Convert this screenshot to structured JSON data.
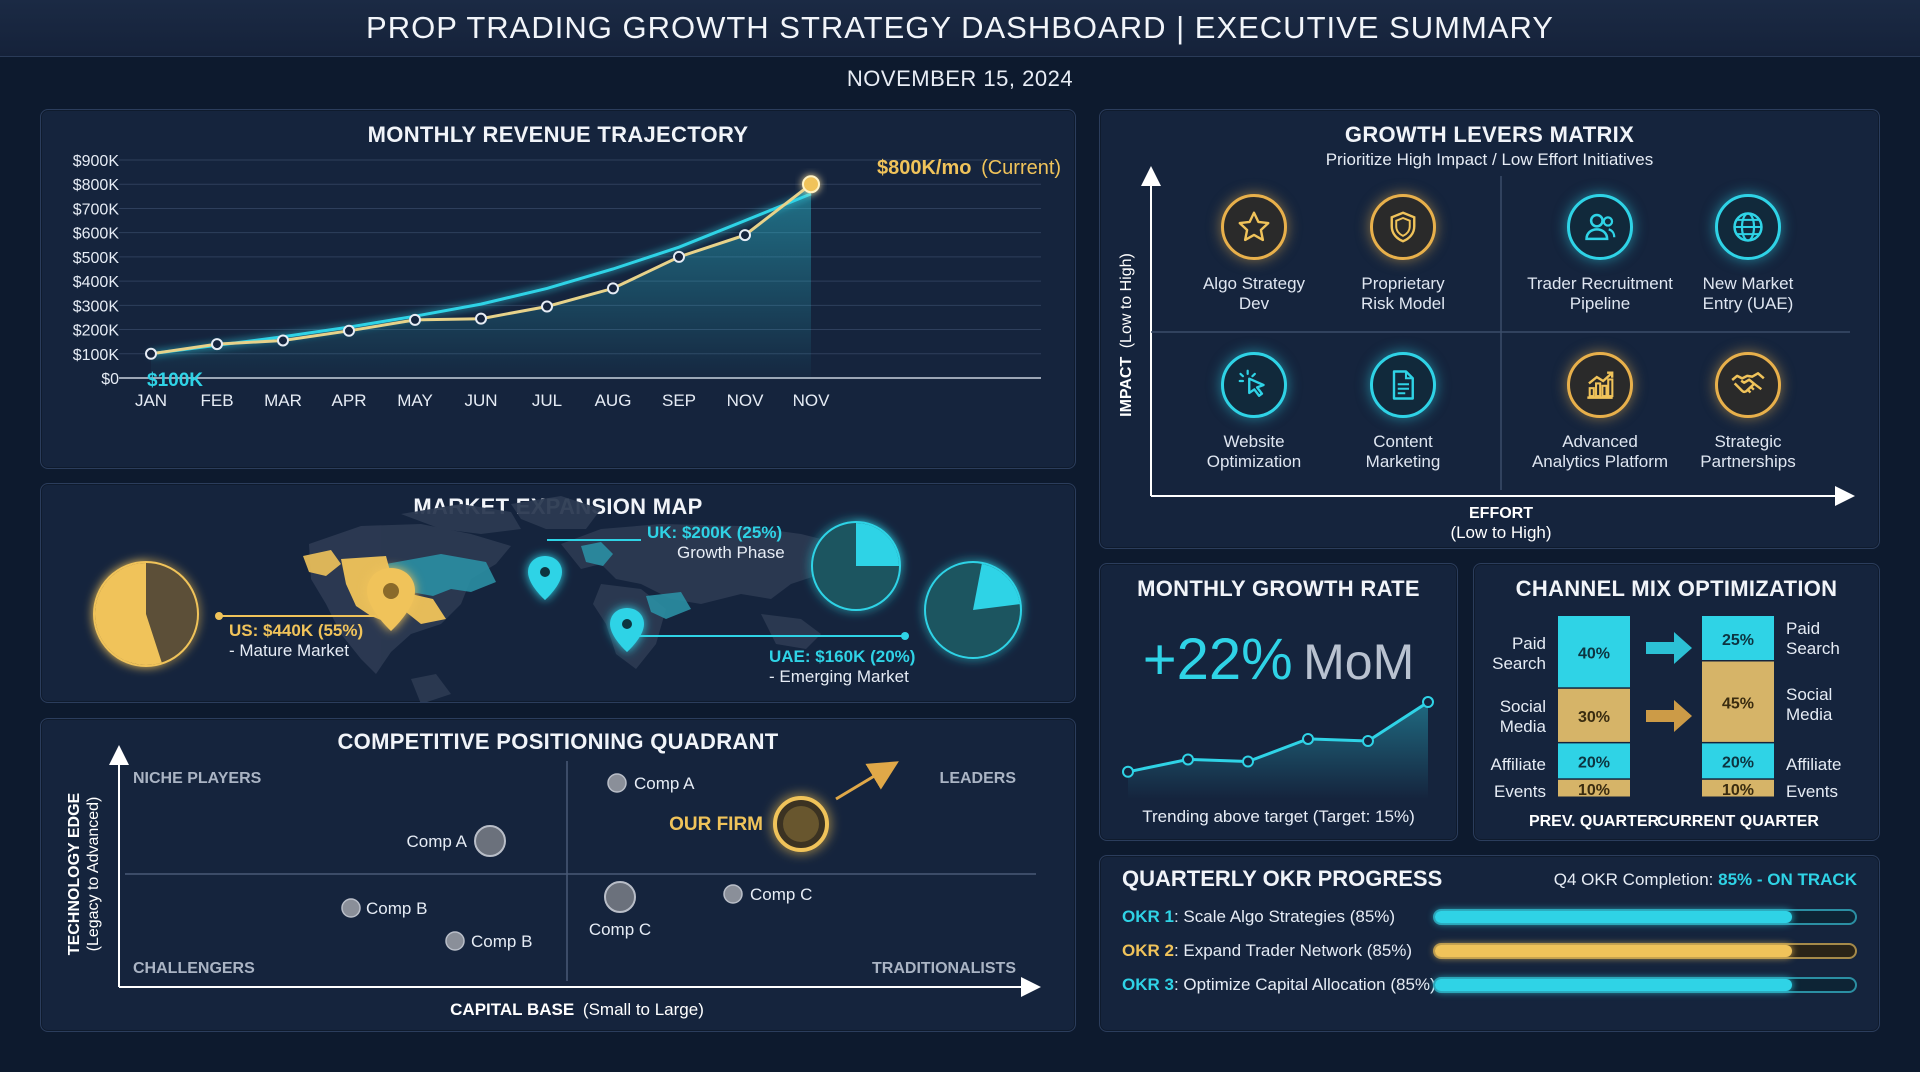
{
  "header": {
    "title": "PROP TRADING GROWTH STRATEGY DASHBOARD | EXECUTIVE SUMMARY",
    "date": "NOVEMBER 15, 2024"
  },
  "colors": {
    "cyan": "#2fd3e6",
    "gold": "#f0c35a",
    "panel": "#15243d",
    "background": "#0d1a2e"
  },
  "revenue": {
    "title": "MONTHLY REVENUE TRAJECTORY",
    "start_label": "$100K",
    "current_value": "$800K/mo",
    "current_suffix": "(Current)",
    "chart_data": {
      "type": "line",
      "categories": [
        "JAN",
        "FEB",
        "MAR",
        "APR",
        "MAY",
        "JUN",
        "JUL",
        "AUG",
        "SEP",
        "NOV",
        "NOV"
      ],
      "y_ticks": [
        "$0",
        "$100K",
        "$200K",
        "$300K",
        "$400K",
        "$500K",
        "$600K",
        "$700K",
        "$800K",
        "$900K"
      ],
      "ylim": [
        0,
        900
      ],
      "series": [
        {
          "values": [
            100,
            140,
            155,
            195,
            240,
            245,
            295,
            370,
            500,
            590,
            800
          ]
        },
        {
          "values": [
            100,
            135,
            170,
            210,
            255,
            305,
            370,
            450,
            540,
            650,
            760
          ]
        }
      ]
    }
  },
  "market": {
    "title": "MARKET EXPANSION MAP",
    "us_label": "US: $440K (55%)",
    "us_sub": "- Mature Market",
    "uk_label": "UK: $200K (25%)",
    "uk_sub": "Growth Phase",
    "uae_label": "UAE: $160K (20%)",
    "uae_sub": "- Emerging Market",
    "shares": {
      "us": 0.55,
      "uk": 0.25,
      "uae": 0.2
    }
  },
  "competitive": {
    "title": "COMPETITIVE POSITIONING QUADRANT",
    "y_axis_title": "TECHNOLOGY EDGE",
    "y_axis_sub": "(Legacy to Advanced)",
    "x_axis_title": "CAPITAL BASE",
    "x_axis_sub": "(Small to Large)",
    "quadrants": {
      "top_left": "NICHE PLAYERS",
      "top_right": "LEADERS",
      "bottom_left": "CHALLENGERS",
      "bottom_right": "TRADITIONALISTS"
    },
    "our_firm": "OUR FIRM",
    "competitors": [
      "Comp A",
      "Comp A",
      "Comp B",
      "Comp B",
      "Comp C",
      "Comp C"
    ]
  },
  "levers": {
    "title": "GROWTH LEVERS MATRIX",
    "subtitle": "Prioritize High Impact / Low Effort Initiatives",
    "y_axis_title": "IMPACT",
    "y_axis_sub": "(Low to High)",
    "x_axis_title": "EFFORT",
    "x_axis_sub": "(Low to High)",
    "items": [
      {
        "line1": "Algo Strategy",
        "line2": "Dev",
        "icon": "star-icon"
      },
      {
        "line1": "Proprietary",
        "line2": "Risk Model",
        "icon": "shield-icon"
      },
      {
        "line1": "Trader Recruitment",
        "line2": "Pipeline",
        "icon": "users-icon"
      },
      {
        "line1": "New Market",
        "line2": "Entry (UAE)",
        "icon": "globe-icon"
      },
      {
        "line1": "Website",
        "line2": "Optimization",
        "icon": "cursor-click-icon"
      },
      {
        "line1": "Content",
        "line2": "Marketing",
        "icon": "document-icon"
      },
      {
        "line1": "Advanced",
        "line2": "Analytics Platform",
        "icon": "bar-chart-icon"
      },
      {
        "line1": "Strategic",
        "line2": "Partnerships",
        "icon": "handshake-icon"
      }
    ]
  },
  "growth": {
    "title": "MONTHLY GROWTH RATE",
    "value": "+22%",
    "unit": "MoM",
    "footnote": "Trending above target (Target: 15%)",
    "spark_values": [
      10,
      22,
      20,
      42,
      40,
      78
    ]
  },
  "channel": {
    "title": "CHANNEL MIX OPTIMIZATION",
    "prev_label": "PREV. QUARTER",
    "curr_label": "CURRENT QUARTER",
    "chart_data": {
      "type": "bar",
      "categories": [
        "PREV. QUARTER",
        "CURRENT QUARTER"
      ],
      "series": [
        {
          "name": "Paid Search",
          "values": [
            40,
            25
          ]
        },
        {
          "name": "Social Media",
          "values": [
            30,
            45
          ]
        },
        {
          "name": "Affiliate",
          "values": [
            20,
            20
          ]
        },
        {
          "name": "Events",
          "values": [
            10,
            10
          ]
        }
      ],
      "value_labels_prev": [
        "40%",
        "30%",
        "20%",
        "10%"
      ],
      "value_labels_curr": [
        "25%",
        "45%",
        "20%",
        "10%"
      ]
    },
    "left_labels": [
      [
        "Paid",
        "Search"
      ],
      [
        "Social",
        "Media"
      ],
      [
        "Affiliate"
      ],
      [
        "Events"
      ]
    ],
    "right_labels": [
      [
        "Paid",
        "Search"
      ],
      [
        "Social",
        "Media"
      ],
      [
        "Affiliate"
      ],
      [
        "Events"
      ]
    ]
  },
  "okr": {
    "title": "QUARTERLY OKR PROGRESS",
    "completion_label": "Q4 OKR Completion:",
    "completion_value": "85% - ON TRACK",
    "items": [
      {
        "key": "OKR 1",
        "text": ": Scale Algo Strategies (85%)",
        "progress": 0.85,
        "color": "#2fd3e6"
      },
      {
        "key": "OKR 2",
        "text": ": Expand Trader Network (85%)",
        "progress": 0.85,
        "color": "#f0c35a"
      },
      {
        "key": "OKR 3",
        "text": ": Optimize Capital Allocation (85%)",
        "progress": 0.85,
        "color": "#2fd3e6"
      }
    ]
  }
}
